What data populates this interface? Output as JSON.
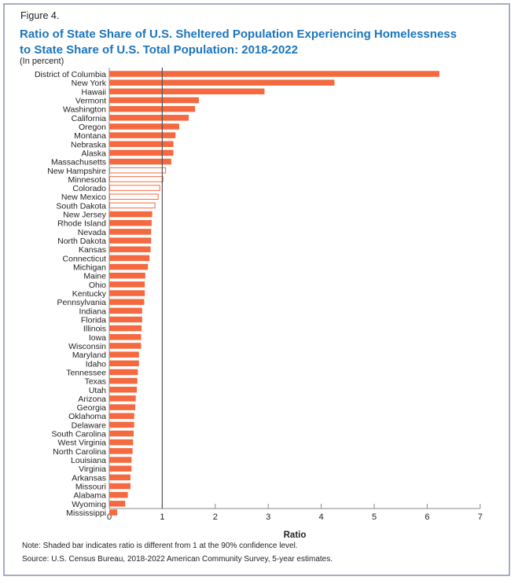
{
  "figure_label": "Figure 4.",
  "title_line1": "Ratio of State Share of U.S. Sheltered Population Experiencing Homelessness",
  "title_line2": "to State Share of U.S. Total Population: 2018-2022",
  "subtitle": "(In percent)",
  "note": "Note: Shaded bar indicates ratio is different from 1 at the 90% confidence level.",
  "source": "Source: U.S. Census Bureau, 2018-2022 American Community Survey, 5-year estimates.",
  "colors": {
    "bar": "#f4693f",
    "title": "#1b75bc",
    "frame": "#8a94b0"
  },
  "chart_data": {
    "type": "bar",
    "orientation": "horizontal",
    "title": "Ratio of State Share of U.S. Sheltered Population Experiencing Homelessness to State Share of U.S. Total Population: 2018-2022",
    "xlabel": "Ratio",
    "ylabel": "",
    "xlim": [
      0,
      7
    ],
    "xticks": [
      "0",
      "1",
      "2",
      "3",
      "4",
      "5",
      "6",
      "7"
    ],
    "reference_line": 1,
    "categories": [
      "District of Columbia",
      "New York",
      "Hawaii",
      "Vermont",
      "Washington",
      "California",
      "Oregon",
      "Montana",
      "Nebraska",
      "Alaska",
      "Massachusetts",
      "New Hampshire",
      "Minnesota",
      "Colorado",
      "New Mexico",
      "South Dakota",
      "New Jersey",
      "Rhode Island",
      "Nevada",
      "North Dakota",
      "Kansas",
      "Connecticut",
      "Michigan",
      "Maine",
      "Ohio",
      "Kentucky",
      "Pennsylvania",
      "Indiana",
      "Florida",
      "Illinois",
      "Iowa",
      "Wisconsin",
      "Maryland",
      "Idaho",
      "Tennessee",
      "Texas",
      "Utah",
      "Arizona",
      "Georgia",
      "Oklahoma",
      "Delaware",
      "South Carolina",
      "West Virginia",
      "North Carolina",
      "Louisiana",
      "Virginia",
      "Arkansas",
      "Missouri",
      "Alabama",
      "Wyoming",
      "Mississippi"
    ],
    "values": [
      6.23,
      4.25,
      2.93,
      1.69,
      1.62,
      1.5,
      1.32,
      1.25,
      1.21,
      1.21,
      1.17,
      1.07,
      1.02,
      0.96,
      0.93,
      0.87,
      0.81,
      0.8,
      0.79,
      0.79,
      0.78,
      0.76,
      0.73,
      0.68,
      0.67,
      0.67,
      0.66,
      0.62,
      0.62,
      0.61,
      0.6,
      0.6,
      0.56,
      0.56,
      0.54,
      0.53,
      0.52,
      0.5,
      0.49,
      0.47,
      0.47,
      0.46,
      0.45,
      0.44,
      0.42,
      0.42,
      0.4,
      0.4,
      0.35,
      0.3,
      0.15
    ],
    "significant": [
      true,
      true,
      true,
      true,
      true,
      true,
      true,
      true,
      true,
      true,
      true,
      false,
      false,
      false,
      false,
      false,
      true,
      true,
      true,
      true,
      true,
      true,
      true,
      true,
      true,
      true,
      true,
      true,
      true,
      true,
      true,
      true,
      true,
      true,
      true,
      true,
      true,
      true,
      true,
      true,
      true,
      true,
      true,
      true,
      true,
      true,
      true,
      true,
      true,
      true,
      true
    ]
  }
}
